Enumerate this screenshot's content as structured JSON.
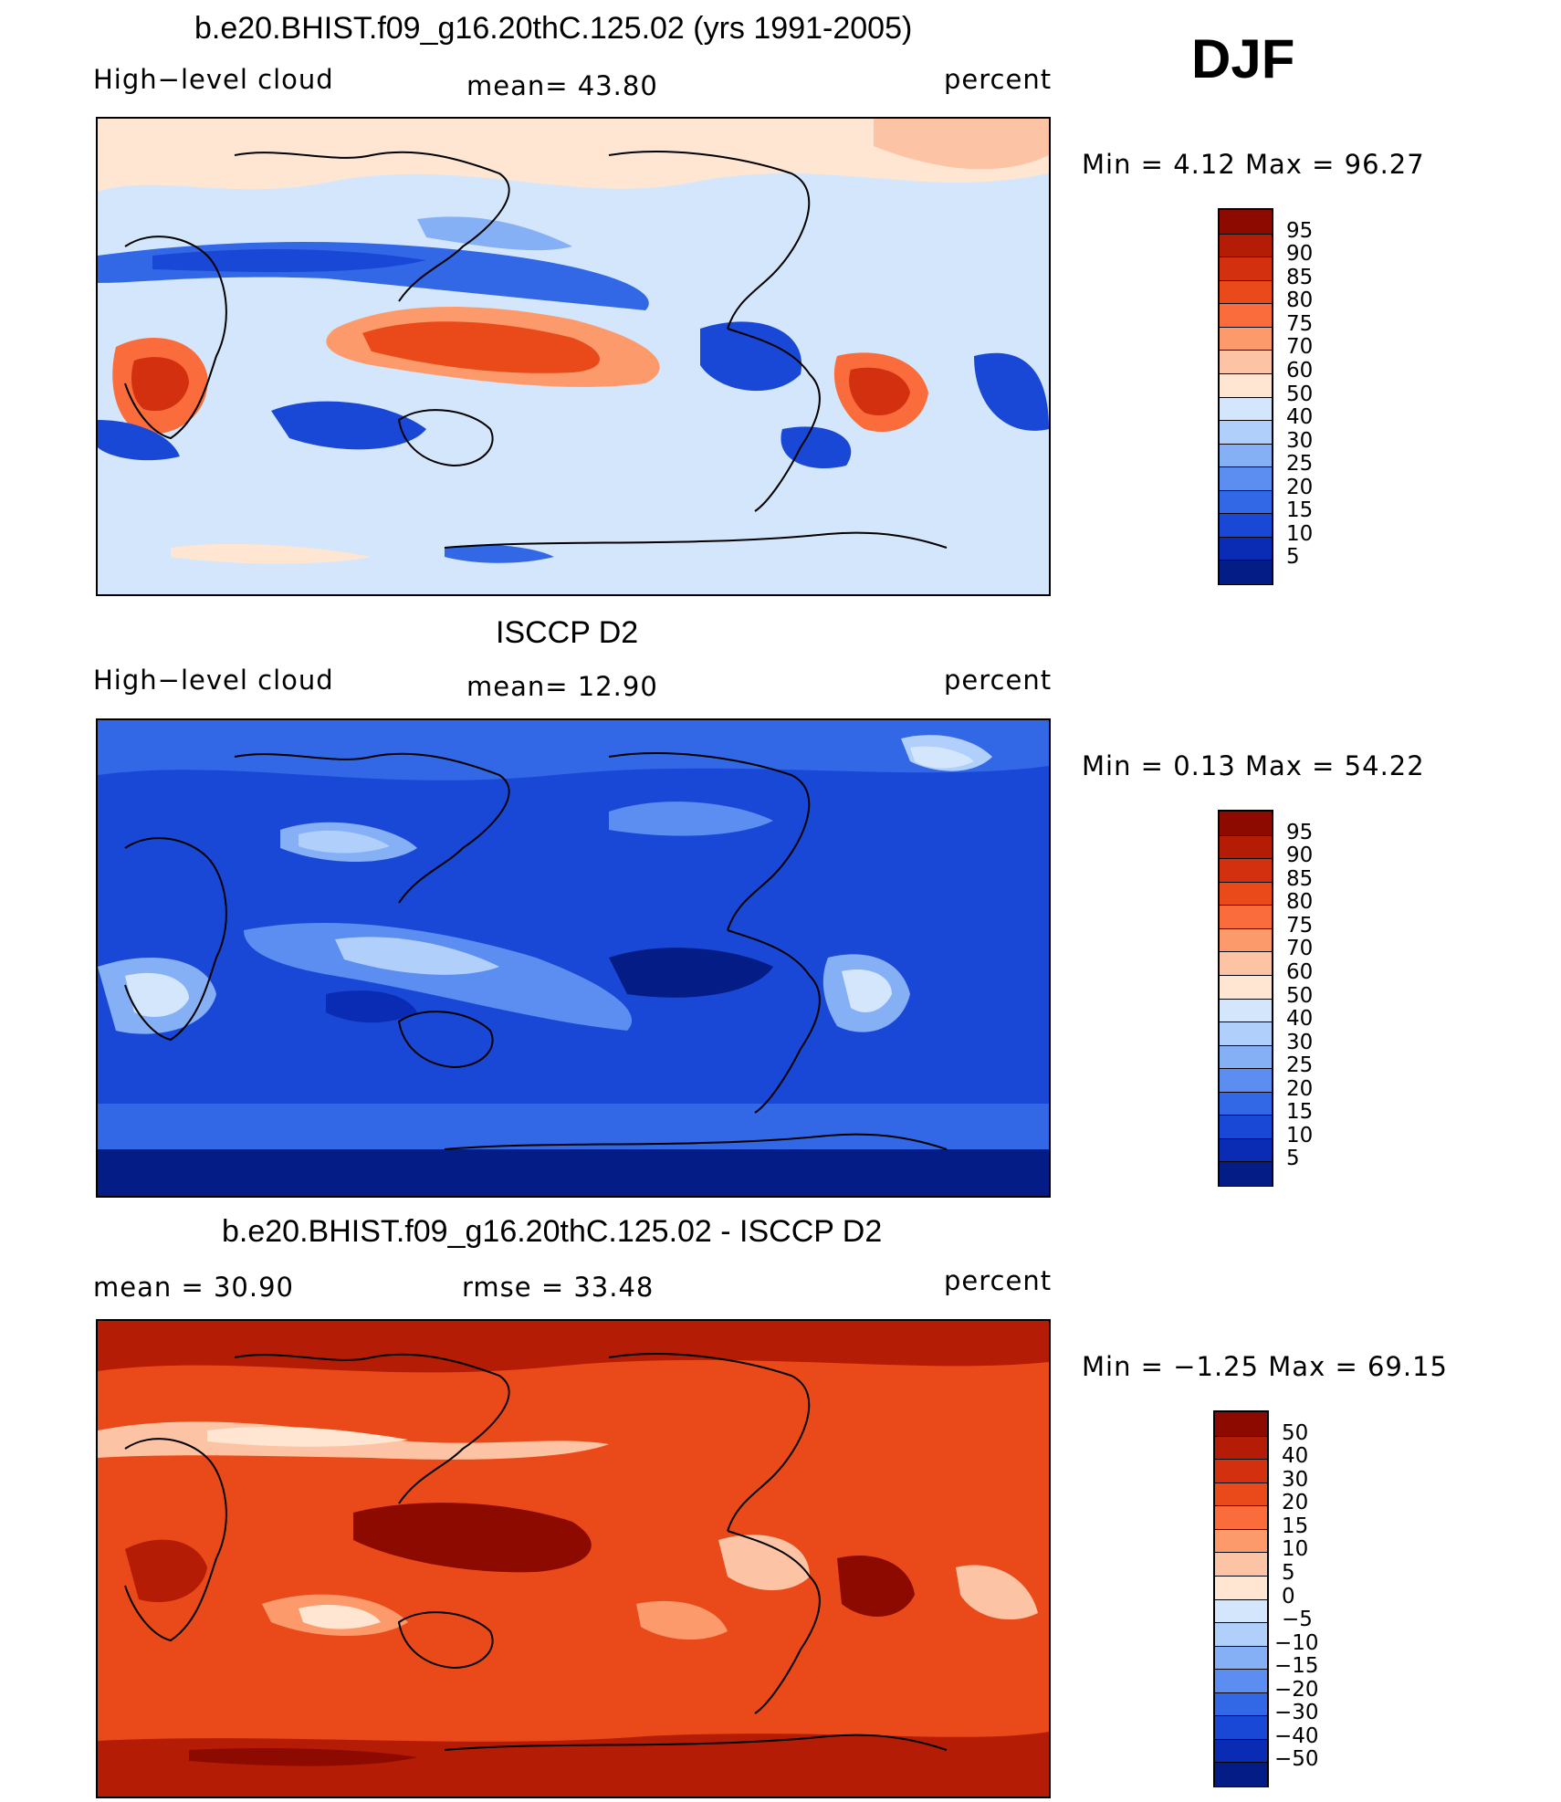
{
  "season": "DJF",
  "panels": [
    {
      "title": "b.e20.BHIST.f09_g16.20thC.125.02 (yrs 1991-2005)",
      "left_label": "High−level cloud",
      "center_label": "mean=   43.80",
      "right_label": "percent",
      "minmax": "Min  =    4.12  Max  =   96.27",
      "colorbar_ticks": [
        "95",
        "90",
        "85",
        "80",
        "75",
        "70",
        "60",
        "50",
        "40",
        "30",
        "25",
        "20",
        "15",
        "10",
        "5"
      ],
      "colorbar_colors": [
        "#8c0a00",
        "#b41c06",
        "#d2300e",
        "#ea4a1a",
        "#fa6c3c",
        "#fc9a6c",
        "#fcc4a4",
        "#fee6d2",
        "#d4e6fc",
        "#b0cffb",
        "#86b0f5",
        "#5c8df0",
        "#3268e6",
        "#1a48d6",
        "#0a2cb4",
        "#041c86"
      ],
      "background": "panel-1-model"
    },
    {
      "title": "ISCCP D2",
      "left_label": "High−level cloud",
      "center_label": "mean=   12.90",
      "right_label": "percent",
      "minmax": "Min  =    0.13  Max  =   54.22",
      "colorbar_ticks": [
        "95",
        "90",
        "85",
        "80",
        "75",
        "70",
        "60",
        "50",
        "40",
        "30",
        "25",
        "20",
        "15",
        "10",
        "5"
      ],
      "colorbar_colors": [
        "#8c0a00",
        "#b41c06",
        "#d2300e",
        "#ea4a1a",
        "#fa6c3c",
        "#fc9a6c",
        "#fcc4a4",
        "#fee6d2",
        "#d4e6fc",
        "#b0cffb",
        "#86b0f5",
        "#5c8df0",
        "#3268e6",
        "#1a48d6",
        "#0a2cb4",
        "#041c86"
      ],
      "background": "panel-2-obs"
    },
    {
      "title": "b.e20.BHIST.f09_g16.20thC.125.02 - ISCCP D2",
      "left_label": "mean  =    30.90",
      "center_label": "rmse  =    33.48",
      "right_label": "percent",
      "minmax": "Min  =   −1.25  Max  =   69.15",
      "colorbar_ticks": [
        "50",
        "40",
        "30",
        "20",
        "15",
        "10",
        "5",
        "0",
        "−5",
        "−10",
        "−15",
        "−20",
        "−30",
        "−40",
        "−50"
      ],
      "colorbar_colors": [
        "#8c0a00",
        "#b41c06",
        "#d2300e",
        "#ea4a1a",
        "#fa6c3c",
        "#fc9a6c",
        "#fcc4a4",
        "#fee6d2",
        "#d4e6fc",
        "#b0cffb",
        "#86b0f5",
        "#5c8df0",
        "#3268e6",
        "#1a48d6",
        "#0a2cb4",
        "#041c86"
      ],
      "background": "panel-3-diff"
    }
  ]
}
